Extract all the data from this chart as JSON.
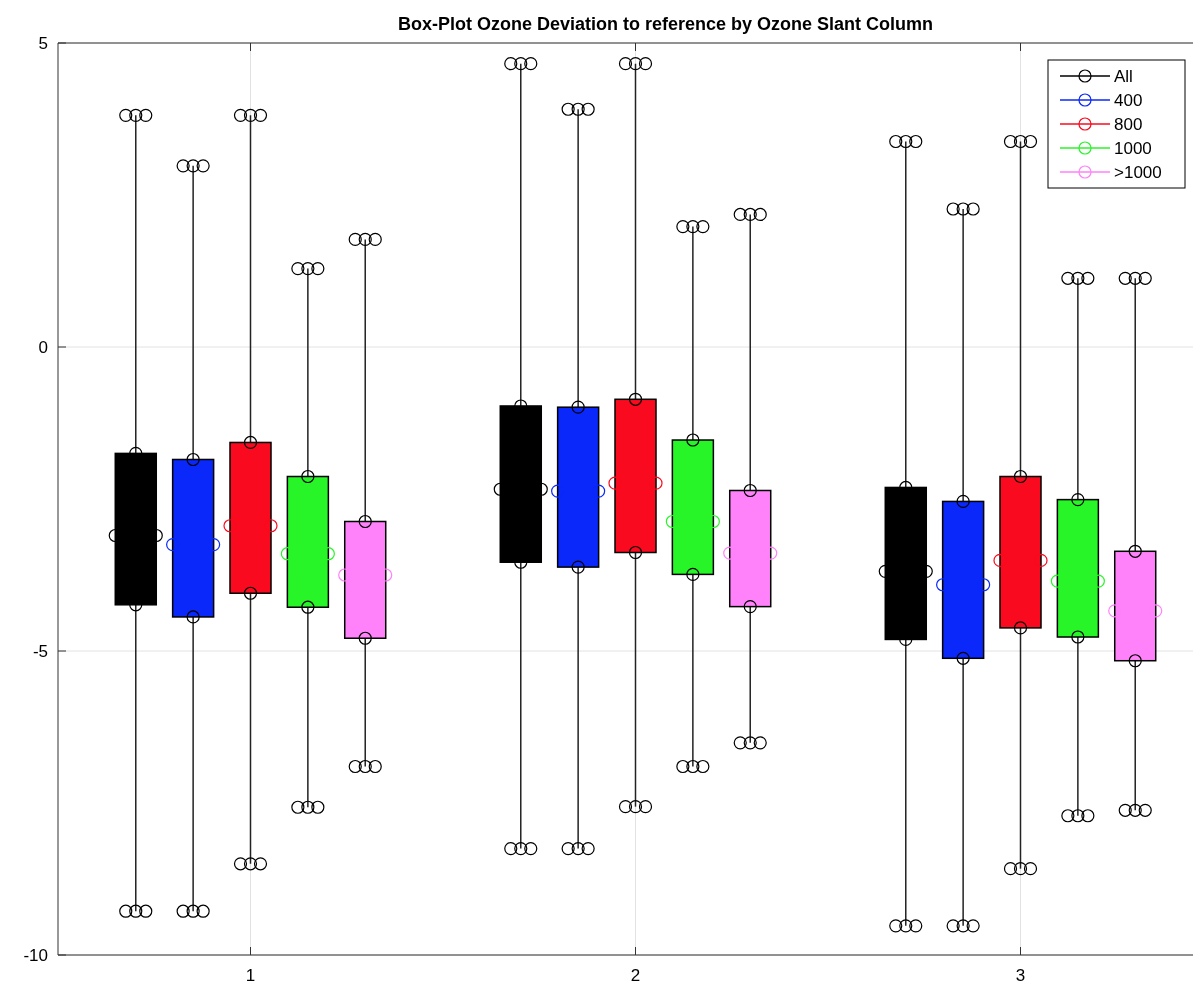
{
  "chart_data": {
    "type": "box",
    "title": "Box-Plot Ozone Deviation to reference by Ozone Slant Column",
    "categories": [
      "1",
      "2",
      "3"
    ],
    "ylim": [
      -10,
      5
    ],
    "yticks": [
      -10,
      -5,
      0,
      5
    ],
    "grid": true,
    "legend": "top right",
    "marker": "circle",
    "series": [
      {
        "name": "All",
        "color": "#000000",
        "boxes": [
          {
            "low": -9.28,
            "q1": -4.24,
            "median": -3.1,
            "q3": -1.75,
            "high": 3.81
          },
          {
            "low": -8.25,
            "q1": -3.54,
            "median": -2.34,
            "q3": -0.97,
            "high": 4.66
          },
          {
            "low": -9.52,
            "q1": -4.81,
            "median": -3.69,
            "q3": -2.31,
            "high": 3.38
          }
        ]
      },
      {
        "name": "400",
        "color": "#0a28fa",
        "boxes": [
          {
            "low": -9.28,
            "q1": -4.44,
            "median": -3.25,
            "q3": -1.85,
            "high": 2.98
          },
          {
            "low": -8.25,
            "q1": -3.62,
            "median": -2.37,
            "q3": -0.99,
            "high": 3.91
          },
          {
            "low": -9.52,
            "q1": -5.12,
            "median": -3.91,
            "q3": -2.54,
            "high": 2.27
          }
        ]
      },
      {
        "name": "800",
        "color": "#fa0a1e",
        "boxes": [
          {
            "low": -8.5,
            "q1": -4.05,
            "median": -2.94,
            "q3": -1.57,
            "high": 3.81
          },
          {
            "low": -7.56,
            "q1": -3.38,
            "median": -2.24,
            "q3": -0.86,
            "high": 4.66
          },
          {
            "low": -8.58,
            "q1": -4.62,
            "median": -3.51,
            "q3": -2.13,
            "high": 3.38
          }
        ]
      },
      {
        "name": "1000",
        "color": "#28f528",
        "boxes": [
          {
            "low": -7.57,
            "q1": -4.28,
            "median": -3.4,
            "q3": -2.13,
            "high": 1.29
          },
          {
            "low": -6.9,
            "q1": -3.74,
            "median": -2.87,
            "q3": -1.53,
            "high": 1.98
          },
          {
            "low": -7.71,
            "q1": -4.77,
            "median": -3.85,
            "q3": -2.51,
            "high": 1.13
          }
        ]
      },
      {
        "name": ">1000",
        "color": "#ff82fa",
        "boxes": [
          {
            "low": -6.9,
            "q1": -4.79,
            "median": -3.75,
            "q3": -2.87,
            "high": 1.77
          },
          {
            "low": -6.51,
            "q1": -4.27,
            "median": -3.39,
            "q3": -2.36,
            "high": 2.18
          },
          {
            "low": -7.62,
            "q1": -5.16,
            "median": -4.34,
            "q3": -3.36,
            "high": 1.13
          }
        ]
      }
    ]
  }
}
